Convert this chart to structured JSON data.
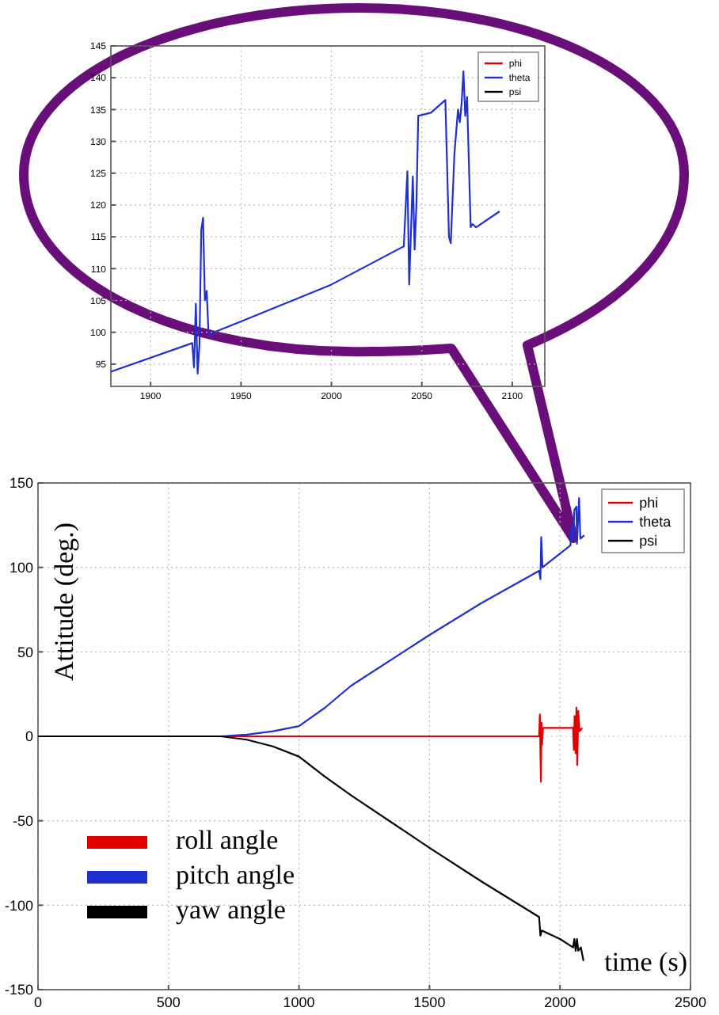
{
  "chart_data": [
    {
      "type": "line",
      "xlim": [
        1878,
        2118
      ],
      "xticks": [
        1900,
        1950,
        2000,
        2050,
        2100
      ],
      "ylim": [
        91.5,
        145
      ],
      "yticks": [
        95,
        100,
        105,
        110,
        115,
        120,
        125,
        130,
        135,
        140,
        145
      ],
      "grid": true,
      "legend": "top right",
      "line_style": "solid",
      "marker": "none",
      "series": [
        {
          "name": "phi",
          "color": "#e00000"
        },
        {
          "name": "theta",
          "color": "#1f2fd0",
          "x": [
            1878,
            1923,
            1924,
            1925,
            1926,
            1927,
            1928,
            1929,
            1930,
            1931,
            1932,
            1933,
            1935,
            1950,
            2000,
            2040,
            2042,
            2043,
            2045,
            2046,
            2047,
            2048,
            2055,
            2063,
            2065,
            2066,
            2068,
            2070,
            2071,
            2072,
            2073,
            2074,
            2075,
            2077,
            2078,
            2080,
            2093
          ],
          "values": [
            93.8,
            98.3,
            94.5,
            104.5,
            93.5,
            98,
            116,
            118,
            105,
            106.5,
            100,
            99.3,
            100,
            101.7,
            107.5,
            113.5,
            125.3,
            107.5,
            124.5,
            113,
            120,
            134,
            134.5,
            136.5,
            115,
            114,
            128,
            135,
            133,
            136,
            141,
            134,
            137,
            116.5,
            117,
            116.5,
            119
          ]
        },
        {
          "name": "psi",
          "color": "#000000"
        }
      ]
    },
    {
      "type": "line",
      "xlabel": "time (s)",
      "ylabel": "Attitude (deg.)",
      "xlim": [
        0,
        2500
      ],
      "xticks": [
        0,
        500,
        1000,
        1500,
        2000,
        2500
      ],
      "ylim": [
        -150,
        150
      ],
      "yticks": [
        -150,
        -100,
        -50,
        0,
        50,
        100,
        150
      ],
      "grid": true,
      "legend": "top right",
      "line_style": "solid",
      "marker": "none",
      "annotations": [
        "roll angle",
        "pitch angle",
        "yaw angle"
      ],
      "series": [
        {
          "name": "phi",
          "color": "#e00000",
          "x": [
            0,
            1920,
            1923,
            1925,
            1927,
            1929,
            1931,
            1935,
            2050,
            2053,
            2056,
            2060,
            2063,
            2066,
            2070,
            2075,
            2085
          ],
          "values": [
            0,
            0,
            13,
            -10,
            -27,
            8,
            -5,
            5,
            5,
            -8,
            12,
            -10,
            17,
            -17,
            15,
            3,
            5
          ]
        },
        {
          "name": "theta",
          "color": "#1f2fd0",
          "x": [
            0,
            700,
            800,
            900,
            1000,
            1100,
            1200,
            1500,
            1700,
            1920,
            1925,
            1928,
            1933,
            2040,
            2045,
            2050,
            2055,
            2063,
            2065,
            2073,
            2078,
            2093
          ],
          "values": [
            0,
            0,
            1,
            3,
            6,
            17,
            30,
            60,
            79,
            98,
            93,
            118,
            100,
            113,
            125,
            116,
            134,
            136,
            114,
            141,
            117,
            119
          ]
        },
        {
          "name": "psi",
          "color": "#000000",
          "x": [
            0,
            700,
            800,
            900,
            1000,
            1100,
            1200,
            1500,
            1700,
            1920,
            1925,
            1930,
            2000,
            2050,
            2055,
            2060,
            2065,
            2070,
            2080,
            2090
          ],
          "values": [
            0,
            0,
            -2,
            -6,
            -12,
            -24,
            -35,
            -66,
            -86,
            -107,
            -118,
            -115,
            -120,
            -125,
            -120,
            -127,
            -120,
            -127,
            -125,
            -133
          ]
        }
      ]
    }
  ]
}
